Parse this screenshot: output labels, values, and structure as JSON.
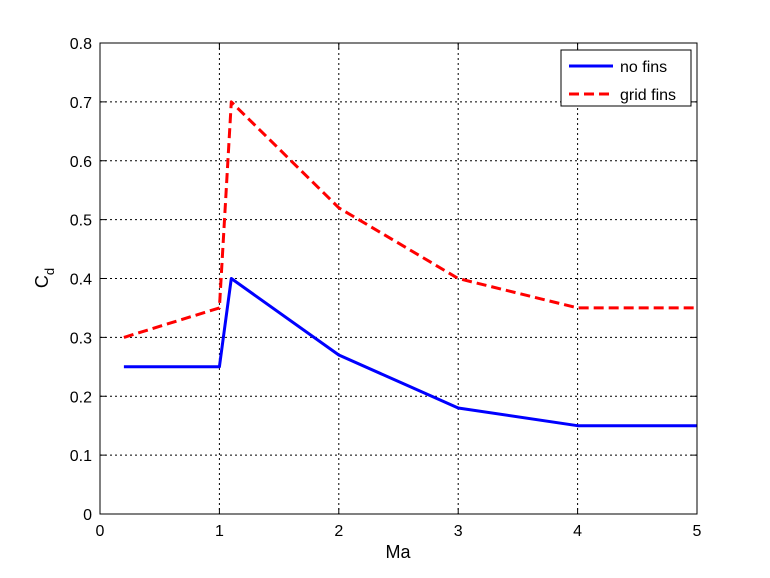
{
  "chart_data": {
    "type": "line",
    "xlabel": "Ma",
    "ylabel": "C",
    "ylabel_subscript": "d",
    "xlim": [
      0,
      5
    ],
    "ylim": [
      0,
      0.8
    ],
    "x_ticks": [
      "0",
      "1",
      "2",
      "3",
      "4",
      "5"
    ],
    "y_ticks": [
      "0",
      "0.1",
      "0.2",
      "0.3",
      "0.4",
      "0.5",
      "0.6",
      "0.7",
      "0.8"
    ],
    "grid": true,
    "legend_position": "top-right",
    "series": [
      {
        "name": "no fins",
        "color": "#0000ff",
        "style": "solid",
        "x": [
          0.2,
          1.0,
          1.1,
          2.0,
          3.0,
          4.0,
          5.0
        ],
        "y": [
          0.25,
          0.25,
          0.4,
          0.27,
          0.18,
          0.15,
          0.15
        ]
      },
      {
        "name": "grid fins",
        "color": "#ff0000",
        "style": "dashed",
        "x": [
          0.2,
          1.0,
          1.1,
          2.0,
          3.0,
          4.0,
          5.0
        ],
        "y": [
          0.3,
          0.35,
          0.7,
          0.52,
          0.4,
          0.35,
          0.35
        ]
      }
    ]
  }
}
